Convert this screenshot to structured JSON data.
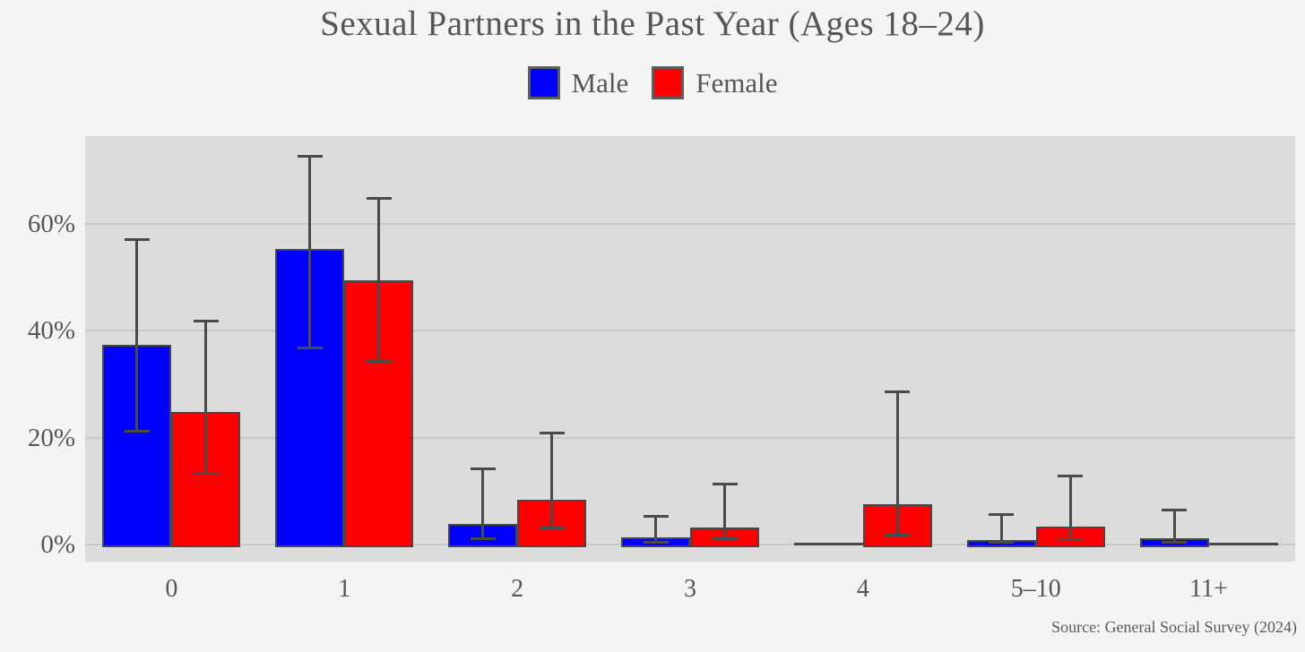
{
  "title": "Sexual Partners in the Past Year (Ages 18–24)",
  "source_note": "Source: General Social Survey (2024)",
  "legend": {
    "items": [
      {
        "label": "Male",
        "color": "#0000ff"
      },
      {
        "label": "Female",
        "color": "#ff0000"
      }
    ]
  },
  "colors": {
    "page_background": "#f4f4f2",
    "plot_background": "#dcdcdc",
    "gridline": "#c7c7c7",
    "bar_edge": "#474747",
    "error_bar": "#4a4a4a",
    "text": "#55555a",
    "source_text": "#5a5a5a",
    "male": "#0000ff",
    "female": "#ff0000"
  },
  "chart_data": {
    "type": "bar",
    "title": "Sexual Partners in the Past Year (Ages 18–24)",
    "xlabel": "",
    "ylabel": "",
    "categories": [
      "0",
      "1",
      "2",
      "3",
      "4",
      "5–10",
      "11+"
    ],
    "series": [
      {
        "name": "Male",
        "color": "#0000ff",
        "values": [
          37.3,
          55.2,
          3.8,
          1.3,
          0,
          0.8,
          1.2
        ],
        "error_low": [
          21.1,
          36.6,
          1.0,
          0.4,
          null,
          0.3,
          0.3
        ],
        "error_high": [
          57.0,
          72.6,
          14.2,
          5.4,
          null,
          5.7,
          6.5
        ]
      },
      {
        "name": "Female",
        "color": "#ff0000",
        "values": [
          24.8,
          49.4,
          8.4,
          3.1,
          7.5,
          3.3,
          0
        ],
        "error_low": [
          13.2,
          34.1,
          3.0,
          1.0,
          1.7,
          0.8,
          null
        ],
        "error_high": [
          41.8,
          64.8,
          20.9,
          11.4,
          28.6,
          12.9,
          null
        ]
      }
    ],
    "yticks": [
      0,
      20,
      40,
      60
    ],
    "ytick_labels": [
      "0%",
      "20%",
      "40%",
      "60%"
    ],
    "ylim": [
      0,
      76.3
    ],
    "grid": "horizontal",
    "legend_position": "top-center",
    "error_bars": true,
    "unit": "percent"
  }
}
